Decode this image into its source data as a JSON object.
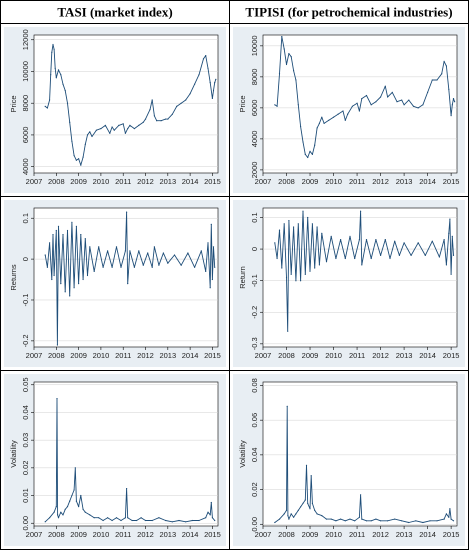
{
  "table": {
    "col_headers": [
      "TASI (market index)",
      "TIPISI (for petrochemical industries)"
    ]
  },
  "colors": {
    "series": "#1f4e79",
    "panel_bg": "#e8eef3",
    "plot_bg": "#ffffff",
    "grid": "#d0d0d0"
  },
  "chart_data": [
    {
      "id": "tasi-price",
      "type": "line",
      "ylabel": "Price",
      "xlim": [
        2007.0,
        2015.25
      ],
      "ylim": [
        3600,
        12300
      ],
      "xticks": [
        2007,
        2008,
        2009,
        2010,
        2011,
        2012,
        2013,
        2014,
        2015
      ],
      "yticks": [
        4000,
        6000,
        8000,
        10000,
        12000
      ],
      "series": [
        {
          "x": [
            2007.5,
            2007.6,
            2007.7,
            2007.75,
            2007.8,
            2007.85,
            2007.9,
            2007.95,
            2008.0,
            2008.1,
            2008.2,
            2008.3,
            2008.4,
            2008.5,
            2008.6,
            2008.7,
            2008.8,
            2008.9,
            2009.0,
            2009.1,
            2009.2,
            2009.3,
            2009.4,
            2009.5,
            2009.6,
            2009.8,
            2010.0,
            2010.2,
            2010.4,
            2010.5,
            2010.6,
            2010.8,
            2011.0,
            2011.1,
            2011.2,
            2011.3,
            2011.5,
            2011.7,
            2011.9,
            2012.0,
            2012.2,
            2012.3,
            2012.4,
            2012.5,
            2012.7,
            2012.9,
            2013.0,
            2013.2,
            2013.4,
            2013.6,
            2013.8,
            2014.0,
            2014.2,
            2014.4,
            2014.6,
            2014.7,
            2014.8,
            2014.9,
            2015.0,
            2015.05,
            2015.1,
            2015.15
          ],
          "y": [
            7800,
            7700,
            8200,
            9800,
            11200,
            11700,
            11400,
            10200,
            9600,
            10100,
            9800,
            9200,
            8800,
            8000,
            6800,
            5600,
            4700,
            4400,
            4500,
            4100,
            4600,
            5400,
            6000,
            6200,
            5900,
            6300,
            6400,
            6600,
            6100,
            6500,
            6300,
            6600,
            6700,
            6100,
            6400,
            6600,
            6400,
            6600,
            6800,
            7000,
            7600,
            8200,
            7200,
            6900,
            6900,
            7000,
            7000,
            7300,
            7800,
            8000,
            8200,
            8600,
            9200,
            9800,
            10800,
            11000,
            10200,
            9300,
            8300,
            8800,
            9300,
            9500
          ]
        }
      ]
    },
    {
      "id": "tipisi-price",
      "type": "line",
      "ylabel": "Price",
      "xlim": [
        2007.0,
        2015.25
      ],
      "ylim": [
        1800,
        10700
      ],
      "xticks": [
        2007,
        2008,
        2009,
        2010,
        2011,
        2012,
        2013,
        2014,
        2015
      ],
      "yticks": [
        2000,
        4000,
        6000,
        8000,
        10000
      ],
      "series": [
        {
          "x": [
            2007.5,
            2007.6,
            2007.7,
            2007.8,
            2007.9,
            2008.0,
            2008.1,
            2008.2,
            2008.3,
            2008.4,
            2008.5,
            2008.6,
            2008.7,
            2008.8,
            2008.9,
            2009.0,
            2009.1,
            2009.2,
            2009.3,
            2009.4,
            2009.5,
            2009.6,
            2009.8,
            2010.0,
            2010.2,
            2010.4,
            2010.5,
            2010.6,
            2010.8,
            2011.0,
            2011.1,
            2011.2,
            2011.4,
            2011.6,
            2011.8,
            2012.0,
            2012.2,
            2012.3,
            2012.5,
            2012.7,
            2012.9,
            2013.0,
            2013.2,
            2013.4,
            2013.6,
            2013.8,
            2014.0,
            2014.2,
            2014.4,
            2014.6,
            2014.7,
            2014.8,
            2014.9,
            2015.0,
            2015.05,
            2015.1,
            2015.15
          ],
          "y": [
            6200,
            6100,
            8200,
            10600,
            9800,
            8800,
            9500,
            9300,
            8400,
            7800,
            6200,
            4800,
            3800,
            3000,
            2800,
            3200,
            3000,
            3600,
            4700,
            5000,
            5400,
            5000,
            5200,
            5400,
            5600,
            5800,
            5200,
            5600,
            6100,
            6300,
            5800,
            6600,
            6800,
            6200,
            6400,
            6700,
            7400,
            6700,
            7000,
            6400,
            6500,
            6200,
            6500,
            6100,
            6000,
            6200,
            7000,
            7800,
            7800,
            8200,
            9000,
            8700,
            7200,
            5500,
            6200,
            6600,
            6400
          ]
        }
      ]
    },
    {
      "id": "tasi-returns",
      "type": "line",
      "ylabel": "Returns",
      "xlim": [
        2007.0,
        2015.25
      ],
      "ylim": [
        -0.215,
        0.125
      ],
      "xticks": [
        2007,
        2008,
        2009,
        2010,
        2011,
        2012,
        2013,
        2014,
        2015
      ],
      "yticks": [
        -0.2,
        -0.1,
        0,
        0.1
      ],
      "yticklabels": [
        "-0.2",
        "-0.1",
        "0",
        "0.1"
      ],
      "series": [
        {
          "x": [
            2007.5,
            2007.6,
            2007.7,
            2007.8,
            2007.85,
            2007.9,
            2008.0,
            2008.05,
            2008.1,
            2008.2,
            2008.3,
            2008.4,
            2008.5,
            2008.6,
            2008.7,
            2008.8,
            2008.9,
            2009.0,
            2009.1,
            2009.2,
            2009.3,
            2009.4,
            2009.5,
            2009.7,
            2009.9,
            2010.1,
            2010.3,
            2010.5,
            2010.7,
            2010.9,
            2011.1,
            2011.15,
            2011.2,
            2011.3,
            2011.5,
            2011.7,
            2011.9,
            2012.1,
            2012.3,
            2012.4,
            2012.6,
            2012.8,
            2013.0,
            2013.3,
            2013.6,
            2013.9,
            2014.2,
            2014.5,
            2014.7,
            2014.8,
            2014.9,
            2014.95,
            2015.0,
            2015.05,
            2015.1
          ],
          "y": [
            0.01,
            -0.02,
            0.04,
            -0.05,
            0.06,
            -0.04,
            0.07,
            -0.21,
            0.08,
            -0.06,
            0.06,
            -0.08,
            0.07,
            -0.09,
            0.09,
            -0.07,
            0.08,
            -0.06,
            0.06,
            -0.05,
            0.05,
            -0.04,
            0.03,
            -0.03,
            0.03,
            -0.02,
            0.02,
            -0.02,
            0.03,
            -0.02,
            0.02,
            0.115,
            -0.06,
            0.02,
            -0.02,
            0.02,
            -0.015,
            0.015,
            -0.02,
            0.03,
            -0.015,
            0.015,
            -0.01,
            0.01,
            -0.015,
            0.015,
            -0.02,
            0.02,
            -0.03,
            0.04,
            -0.07,
            0.085,
            -0.05,
            0.03,
            -0.02
          ]
        }
      ]
    },
    {
      "id": "tipisi-return",
      "type": "line",
      "ylabel": "Return",
      "xlim": [
        2007.0,
        2015.25
      ],
      "ylim": [
        -0.31,
        0.13
      ],
      "xticks": [
        2007,
        2008,
        2009,
        2010,
        2011,
        2012,
        2013,
        2014,
        2015
      ],
      "yticks": [
        -0.3,
        -0.2,
        -0.1,
        0,
        0.1
      ],
      "yticklabels": [
        "-0.3",
        "-0.2",
        "-0.1",
        "0",
        "0.1"
      ],
      "series": [
        {
          "x": [
            2007.5,
            2007.6,
            2007.7,
            2007.8,
            2007.9,
            2008.0,
            2008.05,
            2008.1,
            2008.2,
            2008.3,
            2008.4,
            2008.5,
            2008.6,
            2008.7,
            2008.8,
            2008.9,
            2009.0,
            2009.1,
            2009.2,
            2009.3,
            2009.4,
            2009.5,
            2009.7,
            2009.9,
            2010.1,
            2010.3,
            2010.5,
            2010.7,
            2010.9,
            2011.1,
            2011.15,
            2011.2,
            2011.4,
            2011.6,
            2011.8,
            2012.0,
            2012.2,
            2012.4,
            2012.6,
            2012.8,
            2013.0,
            2013.3,
            2013.6,
            2013.9,
            2014.2,
            2014.5,
            2014.7,
            2014.8,
            2014.9,
            2014.95,
            2015.0,
            2015.05,
            2015.1
          ],
          "y": [
            0.02,
            -0.03,
            0.06,
            -0.06,
            0.08,
            -0.09,
            -0.26,
            0.09,
            -0.08,
            0.07,
            -0.1,
            0.08,
            -0.1,
            0.12,
            -0.08,
            0.1,
            -0.07,
            0.08,
            -0.06,
            0.07,
            -0.05,
            0.05,
            -0.04,
            0.04,
            -0.03,
            0.03,
            -0.03,
            0.04,
            -0.03,
            0.03,
            0.12,
            -0.05,
            0.03,
            -0.03,
            0.03,
            -0.02,
            0.03,
            -0.03,
            0.025,
            -0.02,
            0.02,
            -0.02,
            0.02,
            -0.02,
            0.025,
            -0.025,
            0.03,
            -0.05,
            0.05,
            0.095,
            -0.08,
            0.04,
            -0.02
          ]
        }
      ]
    },
    {
      "id": "tasi-volatility",
      "type": "line",
      "ylabel": "Volatility",
      "xlim": [
        2007.0,
        2015.25
      ],
      "ylim": [
        -0.001,
        0.051
      ],
      "xticks": [
        2007,
        2008,
        2009,
        2010,
        2011,
        2012,
        2013,
        2014,
        2015
      ],
      "yticks": [
        0,
        0.01,
        0.02,
        0.03,
        0.04,
        0.05
      ],
      "yticklabels": [
        "0.00",
        "0.01",
        "0.02",
        "0.03",
        "0.04",
        "0.05"
      ],
      "series": [
        {
          "x": [
            2007.5,
            2007.7,
            2007.9,
            2008.0,
            2008.03,
            2008.06,
            2008.1,
            2008.2,
            2008.3,
            2008.4,
            2008.5,
            2008.6,
            2008.7,
            2008.8,
            2008.85,
            2008.9,
            2009.0,
            2009.1,
            2009.2,
            2009.3,
            2009.5,
            2009.7,
            2009.9,
            2010.1,
            2010.3,
            2010.5,
            2010.7,
            2010.9,
            2011.1,
            2011.15,
            2011.2,
            2011.4,
            2011.6,
            2011.8,
            2012.0,
            2012.3,
            2012.6,
            2012.9,
            2013.2,
            2013.5,
            2013.8,
            2014.1,
            2014.4,
            2014.7,
            2014.8,
            2014.9,
            2014.95,
            2015.0,
            2015.1
          ],
          "y": [
            0.0005,
            0.002,
            0.004,
            0.006,
            0.045,
            0.003,
            0.002,
            0.004,
            0.003,
            0.005,
            0.006,
            0.008,
            0.01,
            0.012,
            0.02,
            0.008,
            0.006,
            0.01,
            0.005,
            0.004,
            0.003,
            0.002,
            0.002,
            0.001,
            0.002,
            0.001,
            0.002,
            0.001,
            0.002,
            0.0125,
            0.002,
            0.001,
            0.001,
            0.002,
            0.001,
            0.001,
            0.002,
            0.001,
            0.0005,
            0.001,
            0.0005,
            0.001,
            0.001,
            0.002,
            0.004,
            0.003,
            0.0075,
            0.002,
            0.001
          ]
        }
      ]
    },
    {
      "id": "tipisi-volatility",
      "type": "line",
      "ylabel": "Volatility",
      "xlim": [
        2007.0,
        2015.25
      ],
      "ylim": [
        -0.001,
        0.082
      ],
      "xticks": [
        2007,
        2008,
        2009,
        2010,
        2011,
        2012,
        2013,
        2014,
        2015
      ],
      "yticks": [
        0,
        0.02,
        0.04,
        0.06,
        0.08
      ],
      "yticklabels": [
        "0.00",
        "0.02",
        "0.04",
        "0.06",
        "0.08"
      ],
      "series": [
        {
          "x": [
            2007.5,
            2007.7,
            2007.9,
            2008.0,
            2008.03,
            2008.06,
            2008.1,
            2008.2,
            2008.3,
            2008.4,
            2008.5,
            2008.6,
            2008.7,
            2008.8,
            2008.85,
            2008.9,
            2009.0,
            2009.05,
            2009.1,
            2009.2,
            2009.3,
            2009.5,
            2009.7,
            2009.9,
            2010.1,
            2010.3,
            2010.5,
            2010.7,
            2010.9,
            2011.1,
            2011.15,
            2011.2,
            2011.4,
            2011.6,
            2011.8,
            2012.0,
            2012.3,
            2012.6,
            2012.9,
            2013.2,
            2013.5,
            2013.8,
            2014.1,
            2014.4,
            2014.7,
            2014.8,
            2014.9,
            2014.95,
            2015.0,
            2015.1
          ],
          "y": [
            0.001,
            0.003,
            0.006,
            0.008,
            0.068,
            0.005,
            0.003,
            0.006,
            0.004,
            0.006,
            0.008,
            0.01,
            0.012,
            0.014,
            0.034,
            0.012,
            0.009,
            0.028,
            0.012,
            0.008,
            0.006,
            0.005,
            0.003,
            0.003,
            0.002,
            0.003,
            0.002,
            0.003,
            0.002,
            0.004,
            0.017,
            0.003,
            0.002,
            0.002,
            0.003,
            0.002,
            0.002,
            0.003,
            0.002,
            0.001,
            0.002,
            0.001,
            0.002,
            0.002,
            0.003,
            0.006,
            0.004,
            0.009,
            0.003,
            0.002
          ]
        }
      ]
    }
  ]
}
